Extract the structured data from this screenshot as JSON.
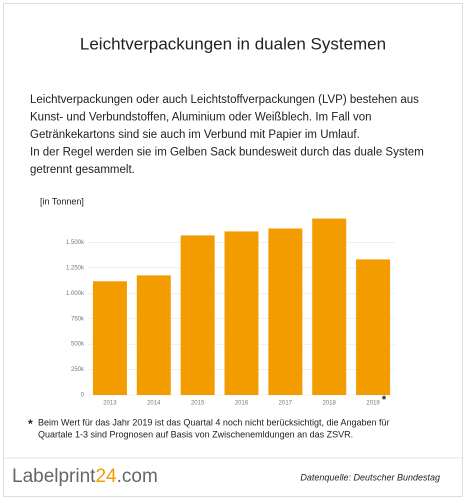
{
  "header": {
    "title": "Leichtverpackungen in dualen Systemen"
  },
  "intro": {
    "lines": [
      "Leichtverpackungen oder auch Leichtstoffverpackungen (LVP) bestehen aus",
      "Kunst- und Verbundstoffen, Aluminium oder Weißblech. Im Fall von",
      "Getränkekartons sind sie auch im Verbund mit Papier im Umlauf.",
      "In der Regel werden sie im Gelben Sack bundesweit durch das duale System",
      "getrennt gesammelt."
    ]
  },
  "chart_data": {
    "type": "bar",
    "y_label": "[in Tonnen]",
    "categories": [
      "2013",
      "2014",
      "2015",
      "2016",
      "2017",
      "2018",
      "2019"
    ],
    "values": [
      1118000,
      1176000,
      1569000,
      1608000,
      1637000,
      1735000,
      1333000
    ],
    "color": "#f39c00",
    "annotation": "*",
    "ylim": [
      0,
      1750000
    ],
    "yticks": [
      0,
      {
        "value": 250000,
        "label": "250k"
      },
      {
        "value": 500000,
        "label": "500k"
      },
      {
        "value": 750000,
        "label": "750k"
      },
      {
        "value": 1000000,
        "label": "1.000k"
      },
      {
        "value": 1250000,
        "label": "1.250k"
      },
      {
        "value": 1500000,
        "label": "1.500k"
      }
    ],
    "grid": true
  },
  "footnote": {
    "marker": "*",
    "lines": [
      "Beim Wert für das Jahr 2019 ist das Quartal 4 noch nicht berücksichtigt, die Angaben für",
      "Quartale 1-3 sind Prognosen auf Basis von Zwischenemldungen an das ZSVR."
    ]
  },
  "footer": {
    "logo": {
      "part1": "Labelprint",
      "part2": "24",
      "part3": ".com"
    },
    "source": "Datenquelle: Deutscher Bundestag"
  }
}
